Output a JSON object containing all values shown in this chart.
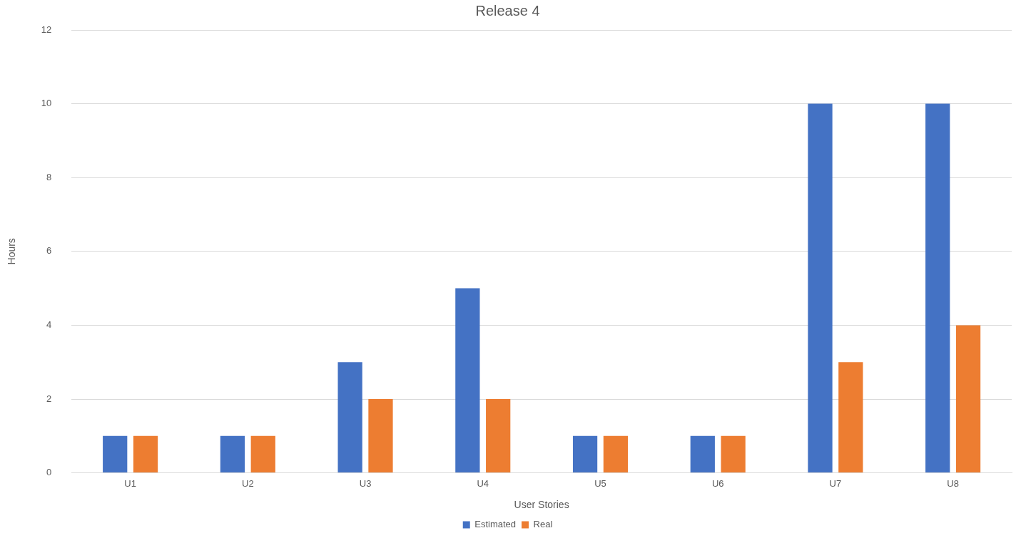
{
  "chart_data": {
    "type": "bar",
    "title": "Release 4",
    "xlabel": "User Stories",
    "ylabel": "Hours",
    "categories": [
      "U1",
      "U2",
      "U3",
      "U4",
      "U5",
      "U6",
      "U7",
      "U8"
    ],
    "series": [
      {
        "name": "Estimated",
        "color": "#4472c4",
        "values": [
          1,
          1,
          3,
          5,
          1,
          1,
          10,
          10
        ]
      },
      {
        "name": "Real",
        "color": "#ed7d31",
        "values": [
          1,
          1,
          2,
          2,
          1,
          1,
          3,
          4
        ]
      }
    ],
    "ylim": [
      0,
      12
    ],
    "yticks": [
      0,
      2,
      4,
      6,
      8,
      10,
      12
    ],
    "grid": "y",
    "legend": "bottom"
  }
}
